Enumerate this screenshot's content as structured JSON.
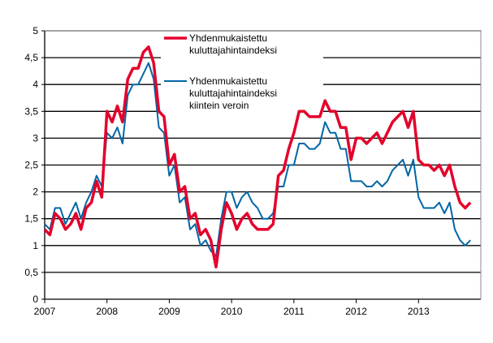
{
  "chart_data": {
    "type": "line",
    "title": "",
    "xlabel": "",
    "ylabel": "",
    "ylim": [
      0,
      5
    ],
    "yticks": [
      "0",
      "0,5",
      "1",
      "1,5",
      "2",
      "2,5",
      "3",
      "3,5",
      "4",
      "4,5",
      "5"
    ],
    "xticks": [
      "2007",
      "2008",
      "2009",
      "2010",
      "2011",
      "2012",
      "2013"
    ],
    "x_start": "2007-01",
    "x_frequency": "monthly",
    "grid": true,
    "legend_position": "top-center",
    "series": [
      {
        "name": "Yhdenmukaistettu kuluttajahintaindeksi",
        "legend_lines": [
          "Yhdenmukaistettu",
          "kuluttajahintaindeksi"
        ],
        "color": "#e4002b",
        "values": [
          1.3,
          1.2,
          1.6,
          1.5,
          1.3,
          1.4,
          1.6,
          1.3,
          1.7,
          1.8,
          2.2,
          1.9,
          3.5,
          3.3,
          3.6,
          3.3,
          4.1,
          4.3,
          4.3,
          4.6,
          4.7,
          4.4,
          3.5,
          3.4,
          2.5,
          2.7,
          2.0,
          2.1,
          1.5,
          1.6,
          1.2,
          1.3,
          1.1,
          0.6,
          1.3,
          1.8,
          1.6,
          1.3,
          1.5,
          1.6,
          1.4,
          1.3,
          1.3,
          1.3,
          1.4,
          2.3,
          2.4,
          2.8,
          3.1,
          3.5,
          3.5,
          3.4,
          3.4,
          3.4,
          3.7,
          3.5,
          3.5,
          3.2,
          3.2,
          2.6,
          3.0,
          3.0,
          2.9,
          3.0,
          3.1,
          2.9,
          3.1,
          3.3,
          3.4,
          3.5,
          3.2,
          3.5,
          2.6,
          2.5,
          2.5,
          2.4,
          2.5,
          2.3,
          2.5,
          2.1,
          1.8,
          1.7,
          1.8
        ]
      },
      {
        "name": "Yhdenmukaistettu kuluttajahintaindeksi kiintein veroin",
        "legend_lines": [
          "Yhdenmukaistettu",
          "kuluttajahintaindeksi",
          "kiintein veroin"
        ],
        "color": "#0066a6",
        "values": [
          1.4,
          1.3,
          1.7,
          1.7,
          1.4,
          1.6,
          1.8,
          1.5,
          1.8,
          2.0,
          2.3,
          2.1,
          3.1,
          3.0,
          3.2,
          2.9,
          3.8,
          4.0,
          4.0,
          4.2,
          4.4,
          4.1,
          3.2,
          3.1,
          2.3,
          2.5,
          1.8,
          1.9,
          1.3,
          1.4,
          1.0,
          1.1,
          0.9,
          0.8,
          1.5,
          2.0,
          2.0,
          1.7,
          1.9,
          2.0,
          1.8,
          1.7,
          1.5,
          1.5,
          1.6,
          2.1,
          2.1,
          2.5,
          2.5,
          2.9,
          2.9,
          2.8,
          2.8,
          2.9,
          3.3,
          3.1,
          3.1,
          2.8,
          2.8,
          2.2,
          2.2,
          2.2,
          2.1,
          2.1,
          2.2,
          2.1,
          2.2,
          2.4,
          2.5,
          2.6,
          2.3,
          2.6,
          1.9,
          1.7,
          1.7,
          1.7,
          1.8,
          1.6,
          1.8,
          1.3,
          1.1,
          1.0,
          1.1
        ]
      }
    ]
  }
}
